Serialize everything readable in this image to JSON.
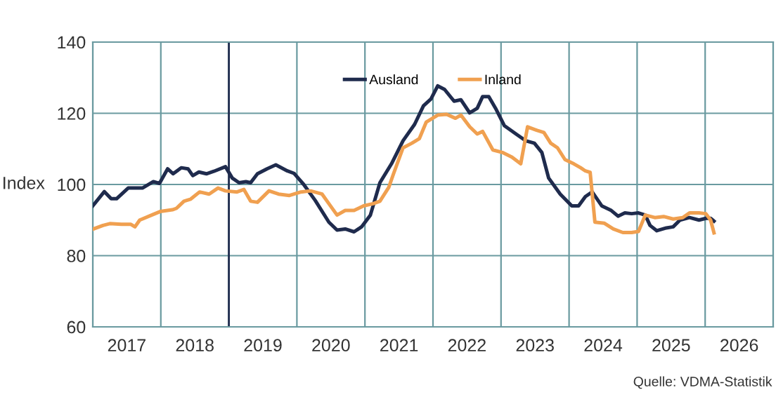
{
  "chart_data": {
    "type": "line",
    "ylabel": "Index",
    "annotations": [
      "Quelle: VDMA-Statistik"
    ],
    "series": [
      {
        "name": "Ausland",
        "color": "#1f2b4d",
        "x": [
          2017.0,
          2017.17,
          2017.27,
          2017.35,
          2017.52,
          2017.73,
          2017.89,
          2017.98,
          2018.1,
          2018.18,
          2018.3,
          2018.4,
          2018.47,
          2018.56,
          2018.67,
          2018.78,
          2018.95,
          2019.05,
          2019.15,
          2019.25,
          2019.32,
          2019.42,
          2019.56,
          2019.69,
          2019.86,
          2019.96,
          2020.1,
          2020.27,
          2020.47,
          2020.59,
          2020.71,
          2020.84,
          2020.95,
          2021.08,
          2021.22,
          2021.39,
          2021.56,
          2021.73,
          2021.86,
          2021.97,
          2022.07,
          2022.17,
          2022.31,
          2022.41,
          2022.54,
          2022.65,
          2022.73,
          2022.82,
          2022.92,
          2023.05,
          2023.22,
          2023.36,
          2023.49,
          2023.6,
          2023.7,
          2023.87,
          2024.04,
          2024.14,
          2024.24,
          2024.34,
          2024.48,
          2024.62,
          2024.72,
          2024.82,
          2024.92,
          2025.02,
          2025.12,
          2025.19,
          2025.29,
          2025.43,
          2025.53,
          2025.63,
          2025.77,
          2025.91,
          2026.01,
          2026.08,
          2026.13
        ],
        "values": [
          94,
          98,
          96,
          96,
          99,
          99,
          100.8,
          100.3,
          104.4,
          103,
          104.7,
          104.4,
          102.5,
          103.5,
          103,
          103.7,
          105,
          101.8,
          100.5,
          100.8,
          100.5,
          103,
          104.4,
          105.5,
          103.8,
          103.1,
          100,
          95.5,
          89.4,
          87.2,
          87.5,
          86.7,
          88.1,
          91.4,
          100.5,
          105.8,
          112.3,
          116.9,
          122.1,
          124,
          127.7,
          126.7,
          123.4,
          123.8,
          120.1,
          121.4,
          124.7,
          124.7,
          121.4,
          116.5,
          114.2,
          112.3,
          111.6,
          109,
          101.8,
          97.3,
          94,
          94,
          96.6,
          97.9,
          94,
          92.7,
          91.1,
          92,
          91.8,
          92,
          91.4,
          88.5,
          87,
          87.8,
          88.1,
          90,
          90.7,
          90,
          90.5,
          90.5,
          89.7
        ]
      },
      {
        "name": "Inland",
        "color": "#f0a050",
        "x": [
          2017.01,
          2017.15,
          2017.25,
          2017.42,
          2017.56,
          2017.62,
          2017.69,
          2017.89,
          2017.99,
          2018.17,
          2018.23,
          2018.34,
          2018.44,
          2018.57,
          2018.71,
          2018.84,
          2018.95,
          2019.12,
          2019.22,
          2019.32,
          2019.42,
          2019.59,
          2019.73,
          2019.89,
          2020.06,
          2020.2,
          2020.37,
          2020.47,
          2020.59,
          2020.71,
          2020.84,
          2020.98,
          2021.12,
          2021.22,
          2021.35,
          2021.42,
          2021.56,
          2021.69,
          2021.8,
          2021.9,
          2022.07,
          2022.2,
          2022.33,
          2022.41,
          2022.54,
          2022.65,
          2022.73,
          2022.88,
          2023.02,
          2023.16,
          2023.29,
          2023.39,
          2023.53,
          2023.63,
          2023.73,
          2023.83,
          2023.94,
          2024.07,
          2024.17,
          2024.24,
          2024.31,
          2024.38,
          2024.52,
          2024.65,
          2024.79,
          2024.92,
          2025.02,
          2025.12,
          2025.26,
          2025.39,
          2025.53,
          2025.67,
          2025.77,
          2025.91,
          2026.01,
          2026.08,
          2026.13
        ],
        "values": [
          87.5,
          88.5,
          89,
          88.8,
          88.8,
          88.1,
          90,
          91.6,
          92.4,
          92.9,
          93.3,
          95.3,
          95.9,
          97.9,
          97.3,
          99,
          98.2,
          97.9,
          98.6,
          95.3,
          95,
          98.2,
          97.3,
          96.9,
          97.9,
          98.2,
          97.3,
          94.6,
          91.4,
          92.7,
          92.7,
          94,
          94.6,
          95.3,
          99.2,
          103,
          110.3,
          111.6,
          112.9,
          117.5,
          119.5,
          119.7,
          118.6,
          119.5,
          116.2,
          114.2,
          114.9,
          109.7,
          109,
          107.7,
          105.8,
          116.2,
          115.2,
          114.6,
          111.6,
          110.3,
          107,
          105.8,
          104.7,
          103.8,
          103.4,
          89.4,
          89.1,
          87.5,
          86.5,
          86.5,
          86.8,
          91.4,
          90.7,
          91,
          90.3,
          90.7,
          92,
          92,
          91.8,
          90,
          86.4
        ]
      }
    ],
    "xlim": [
      2017,
      2027
    ],
    "xticks": [
      {
        "value": 2017,
        "label": null
      },
      {
        "value": 2017.5,
        "label": "2017"
      },
      {
        "value": 2018,
        "label": null
      },
      {
        "value": 2018.5,
        "label": "2018"
      },
      {
        "value": 2019,
        "label": null
      },
      {
        "value": 2019.5,
        "label": "2019"
      },
      {
        "value": 2020,
        "label": null
      },
      {
        "value": 2020.5,
        "label": "2020"
      },
      {
        "value": 2021,
        "label": null
      },
      {
        "value": 2021.5,
        "label": "2021"
      },
      {
        "value": 2022,
        "label": null
      },
      {
        "value": 2022.5,
        "label": "2022"
      },
      {
        "value": 2023,
        "label": null
      },
      {
        "value": 2023.5,
        "label": "2023"
      },
      {
        "value": 2024,
        "label": null
      },
      {
        "value": 2024.5,
        "label": "2024"
      },
      {
        "value": 2025,
        "label": null
      },
      {
        "value": 2025.5,
        "label": "2025"
      },
      {
        "value": 2026,
        "label": null
      },
      {
        "value": 2026.5,
        "label": "2026"
      },
      {
        "value": 2027,
        "label": null
      }
    ],
    "ylim": [
      60,
      140
    ],
    "yticks": [
      60,
      80,
      100,
      120,
      140
    ],
    "ref_lines": [
      {
        "axis": "x",
        "value": 2019,
        "color": "#1f2b4d"
      }
    ],
    "grid": true,
    "legend": "top",
    "marker": "none",
    "line_style": "solid"
  }
}
